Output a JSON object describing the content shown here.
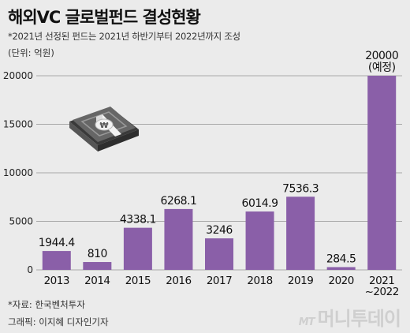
{
  "header": {
    "title": "해외VC 글로벌펀드 결성현황",
    "subtitle": "*2021년 선정된 펀드는 2021년 하반기부터 2022년까지 조성",
    "unit": "(단위: 억원)"
  },
  "footer": {
    "source": "*자료: 한국벤처투자",
    "credit": "그래픽: 이지혜 디자인기자",
    "watermark_mt": "MT",
    "watermark_name": "머니투데이"
  },
  "colors": {
    "bar": "#8a5fa8",
    "background": "#ebebeb",
    "grid": "#a9a9a9"
  },
  "decor": {
    "icon": "money-stack-icon"
  },
  "chart_data": {
    "type": "bar",
    "categories": [
      "2013",
      "2014",
      "2015",
      "2016",
      "2017",
      "2018",
      "2019",
      "2020",
      "2021\n~2022"
    ],
    "values": [
      1944.4,
      810,
      4338.1,
      6268.1,
      3246,
      6014.9,
      7536.3,
      284.5,
      20000
    ],
    "value_labels": [
      "1944.4",
      "810",
      "4338.1",
      "6268.1",
      "3246",
      "6014.9",
      "7536.3",
      "284.5",
      "20000\n(예정)"
    ],
    "yticks": [
      "0",
      "5000",
      "10000",
      "15000",
      "20000"
    ],
    "ylim": [
      0,
      20000
    ],
    "grid": true
  }
}
